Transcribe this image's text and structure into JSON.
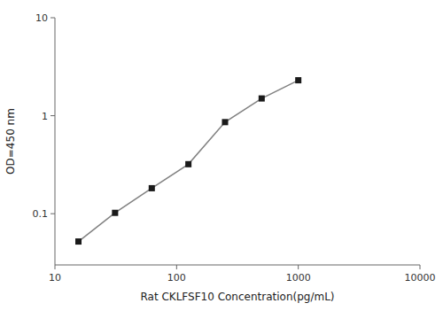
{
  "chart_data": {
    "type": "line",
    "x": [
      15.6,
      31.2,
      62.5,
      125,
      250,
      500,
      1000
    ],
    "values": [
      0.052,
      0.102,
      0.182,
      0.32,
      0.86,
      1.5,
      2.3
    ],
    "xlabel": "Rat CKLFSF10 Concentration(pg/mL)",
    "ylabel": "OD=450 nm",
    "xlim": [
      10,
      10000
    ],
    "ylim": [
      0.03,
      10
    ],
    "xticks": [
      10,
      100,
      1000,
      10000
    ],
    "yticks": [
      0.1,
      1,
      10
    ],
    "log": true,
    "grid": false,
    "color": "#1a1a1a",
    "marker": "square"
  }
}
